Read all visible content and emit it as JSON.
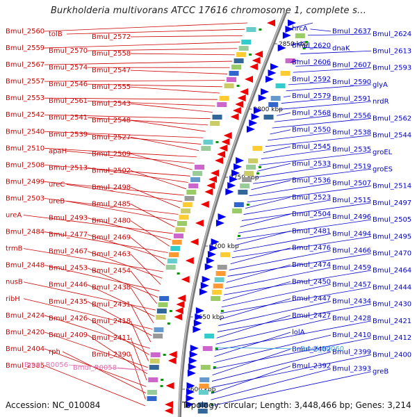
{
  "title": "Burkholderia multivorans ATCC 17616 chromosome 1, complete s...",
  "accession_text": "Accession: NC_010084",
  "summary_text": "Topology: circular; Length: 3,448,466 bp; Genes: 3,214",
  "colors": {
    "left_label": "#cc0000",
    "right_label": "#0000cc",
    "rna_left": "#e070b0",
    "rna_right": "#33aadd",
    "axis": "#888888"
  },
  "kbp_ticks": [
    {
      "label": "2850 kbp"
    },
    {
      "label": "2800 kbp"
    },
    {
      "label": "2750 kbp"
    },
    {
      "label": "2700 kbp"
    },
    {
      "label": "2650 kbp"
    },
    {
      "label": "2600 kbp"
    }
  ],
  "left_labels": [
    "Bmul_2560",
    "tolB",
    "Bmul_2572",
    "Bmul_2559",
    "Bmul_2570",
    "Bmul_2558",
    "Bmul_2567",
    "Bmul_2574",
    "Bmul_2547",
    "Bmul_2557",
    "Bmul_2546",
    "Bmul_2555",
    "Bmul_2553",
    "Bmul_2561",
    "Bmul_2543",
    "Bmul_2542",
    "Bmul_2541",
    "Bmul_2548",
    "Bmul_2540",
    "Bmul_2539",
    "Bmul_2527",
    "Bmul_2510",
    "apaH",
    "Bmul_2509",
    "Bmul_2508",
    "Bmul_2513",
    "Bmul_2502",
    "Bmul_2499",
    "ureC",
    "Bmul_2498",
    "Bmul_2503",
    "ureB",
    "Bmul_2485",
    "ureA",
    "Bmul_2493",
    "Bmul_2480",
    "Bmul_2484",
    "Bmul_2477",
    "Bmul_2469",
    "trmB",
    "Bmul_2467",
    "Bmul_2463",
    "Bmul_2448",
    "Bmul_2453",
    "Bmul_2454",
    "nusB",
    "Bmul_2446",
    "Bmul_2438",
    "ribH",
    "Bmul_2435",
    "Bmul_2431",
    "Bmul_2424",
    "Bmul_2426",
    "Bmul_2418",
    "Bmul_2420",
    "Bmul_2409",
    "Bmul_2411",
    "Bmul_2404",
    "rph",
    "Bmul_2390",
    "Bmul_2385"
  ],
  "left_rna_labels": [
    "Bmul_R0056",
    "Bmul_R0058"
  ],
  "right_labels": [
    "hrcA",
    "Bmul_2637",
    "Bmul_2624",
    "Bmul_2620",
    "dnaK",
    "Bmul_2613",
    "Bmul_2606",
    "Bmul_2607",
    "Bmul_2593",
    "Bmul_2592",
    "Bmul_2590",
    "glyA",
    "Bmul_2579",
    "Bmul_2591",
    "nrdR",
    "Bmul_2568",
    "Bmul_2556",
    "Bmul_2562",
    "Bmul_2550",
    "Bmul_2538",
    "Bmul_2544",
    "Bmul_2545",
    "Bmul_2535",
    "groEL",
    "Bmul_2533",
    "Bmul_2519",
    "groES",
    "Bmul_2536",
    "Bmul_2507",
    "Bmul_2514",
    "Bmul_2523",
    "Bmul_2515",
    "Bmul_2497",
    "Bmul_2504",
    "Bmul_2496",
    "Bmul_2505",
    "Bmul_2481",
    "Bmul_2494",
    "Bmul_2495",
    "Bmul_2476",
    "Bmul_2466",
    "Bmul_2470",
    "Bmul_2474",
    "Bmul_2459",
    "Bmul_2464",
    "Bmul_2450",
    "Bmul_2457",
    "Bmul_2444",
    "Bmul_2447",
    "Bmul_2434",
    "Bmul_2430",
    "Bmul_2427",
    "Bmul_2428",
    "Bmul_2421",
    "lolA",
    "Bmul_2410",
    "Bmul_2412",
    "Bmul_2402",
    "Bmul_2399",
    "Bmul_2400",
    "Bmul_2392",
    "Bmul_2393",
    "greB"
  ],
  "right_rna_labels": [
    "Bmul_R0060"
  ]
}
